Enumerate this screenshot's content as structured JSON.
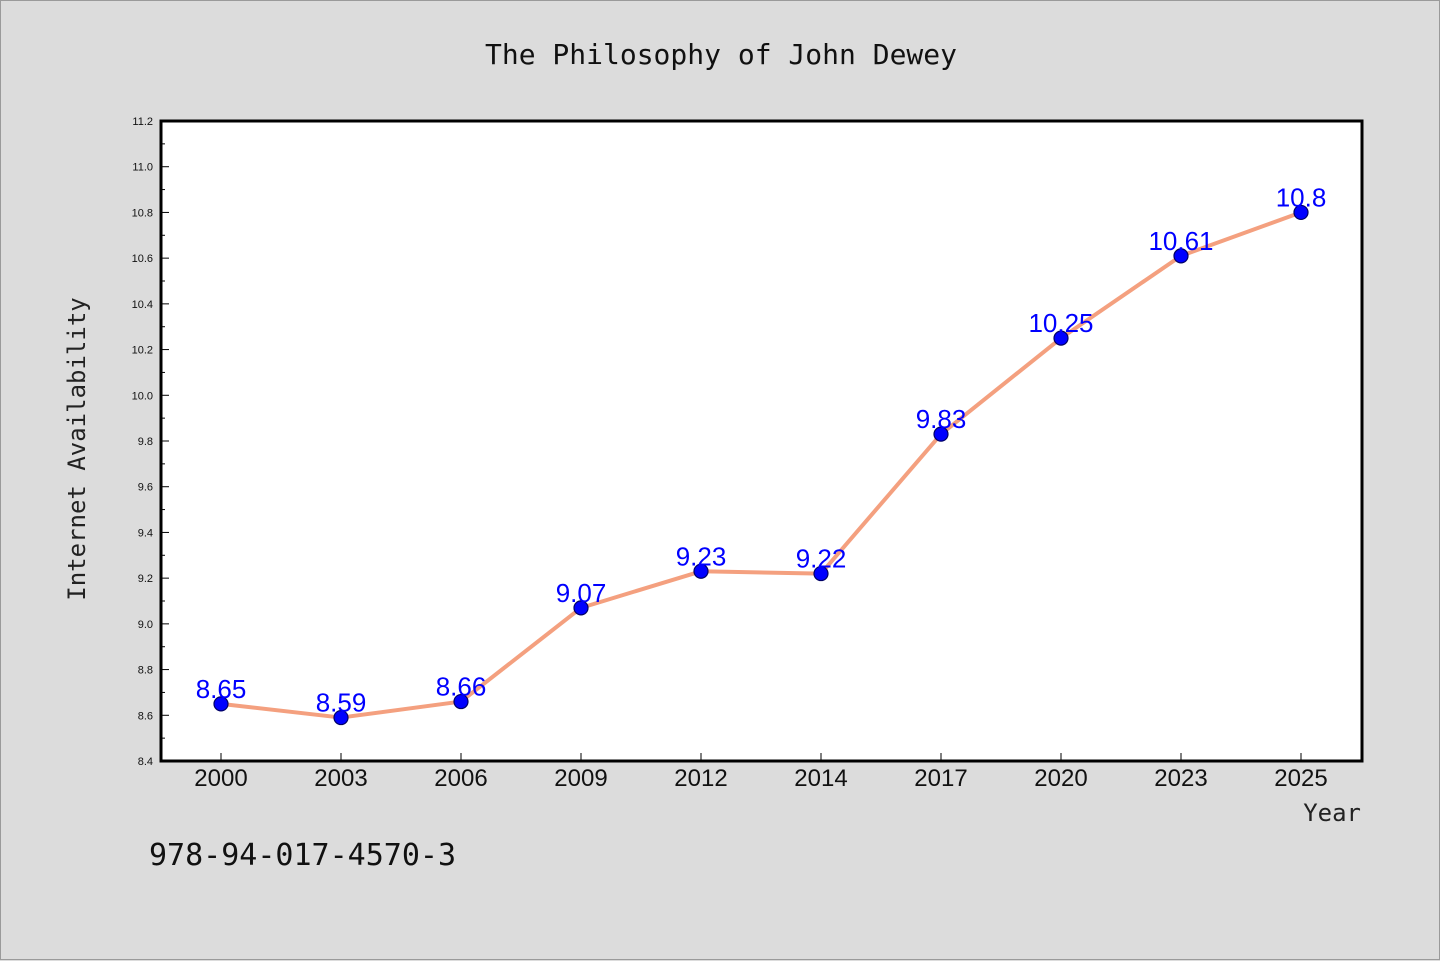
{
  "chart_data": {
    "type": "line",
    "title": "The Philosophy of John Dewey",
    "xlabel": "Year",
    "ylabel": "Internet Availability",
    "categories": [
      "2000",
      "2003",
      "2006",
      "2009",
      "2012",
      "2014",
      "2017",
      "2020",
      "2023",
      "2025"
    ],
    "series": [
      {
        "values": [
          8.65,
          8.59,
          8.66,
          9.07,
          9.23,
          9.22,
          9.83,
          10.25,
          10.61,
          10.8
        ],
        "labels": [
          "8.65",
          "8.59",
          "8.66",
          "9.07",
          "9.23",
          "9.22",
          "9.83",
          "10.25",
          "10.61",
          "10.8"
        ]
      }
    ],
    "ylim": [
      8.4,
      11.2
    ],
    "yticks": [
      "8.4",
      "8.6",
      "8.8",
      "9.0",
      "9.2",
      "9.4",
      "9.6",
      "9.8",
      "10.0",
      "10.2",
      "10.4",
      "10.6",
      "10.8",
      "11.0",
      "11.2"
    ],
    "grid": false,
    "colors": {
      "line": "#f4a07f",
      "marker_fill": "#0000ff",
      "marker_edge": "#000066",
      "data_label": "#0000ff",
      "plot_background": "#ffffff",
      "figure_background": "#dcdcdc"
    }
  },
  "annotation": {
    "isbn": "978-94-017-4570-3"
  }
}
